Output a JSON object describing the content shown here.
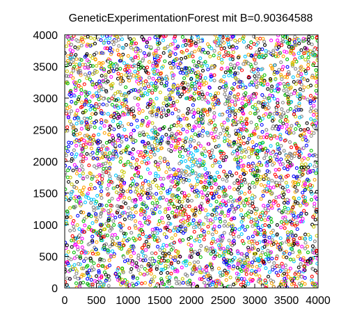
{
  "chart_data": {
    "type": "scatter",
    "title": "GeneticExperimentationForest mit B=0.90364588",
    "xlabel": "",
    "ylabel": "",
    "xlim": [
      0,
      4000
    ],
    "ylim": [
      0,
      4000
    ],
    "x_ticks": [
      0,
      500,
      1000,
      1500,
      2000,
      2500,
      3000,
      3500,
      4000
    ],
    "y_ticks": [
      0,
      500,
      1000,
      1500,
      2000,
      2500,
      3000,
      3500,
      4000
    ],
    "x_tick_labels": [
      "0",
      "500",
      "1000",
      "1500",
      "2000",
      "2500",
      "3000",
      "3500",
      "4000"
    ],
    "y_tick_labels": [
      "0",
      "500",
      "1000",
      "1500",
      "2000",
      "2500",
      "3000",
      "3500",
      "4000"
    ],
    "grid": false,
    "legend": "none",
    "marker": "open-circle",
    "colors": [
      "#000000",
      "#ff0000",
      "#00c000",
      "#0000ff",
      "#ff00ff",
      "#00c8ff",
      "#c8c800",
      "#ffa000",
      "#808080",
      "#ffffff"
    ],
    "center_cluster": {
      "x": 2050,
      "y": 1950,
      "color": "#00c8ff"
    }
  }
}
